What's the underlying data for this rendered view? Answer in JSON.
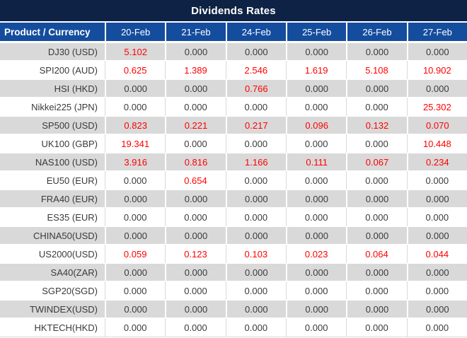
{
  "chart_data": {
    "type": "table",
    "title": "Dividends Rates",
    "columns": [
      "Product / Currency",
      "20-Feb",
      "21-Feb",
      "24-Feb",
      "25-Feb",
      "26-Feb",
      "27-Feb"
    ],
    "rows": [
      {
        "product": "DJ30 (USD)",
        "values": [
          5.102,
          0,
          0,
          0,
          0,
          0
        ]
      },
      {
        "product": "SPI200 (AUD)",
        "values": [
          0.625,
          1.389,
          2.546,
          1.619,
          5.108,
          10.902
        ]
      },
      {
        "product": "HSI (HKD)",
        "values": [
          0,
          0,
          0.766,
          0,
          0,
          0
        ]
      },
      {
        "product": "Nikkei225 (JPN)",
        "values": [
          0,
          0,
          0,
          0,
          0,
          25.302
        ]
      },
      {
        "product": "SP500 (USD)",
        "values": [
          0.823,
          0.221,
          0.217,
          0.096,
          0.132,
          0.07
        ]
      },
      {
        "product": "UK100 (GBP)",
        "values": [
          19.341,
          0,
          0,
          0,
          0,
          10.448
        ]
      },
      {
        "product": "NAS100 (USD)",
        "values": [
          3.916,
          0.816,
          1.166,
          0.111,
          0.067,
          0.234
        ]
      },
      {
        "product": "EU50 (EUR)",
        "values": [
          0,
          0.654,
          0,
          0,
          0,
          0
        ]
      },
      {
        "product": "FRA40 (EUR)",
        "values": [
          0,
          0,
          0,
          0,
          0,
          0
        ]
      },
      {
        "product": "ES35 (EUR)",
        "values": [
          0,
          0,
          0,
          0,
          0,
          0
        ]
      },
      {
        "product": "CHINA50(USD)",
        "values": [
          0,
          0,
          0,
          0,
          0,
          0
        ]
      },
      {
        "product": "US2000(USD)",
        "values": [
          0.059,
          0.123,
          0.103,
          0.023,
          0.064,
          0.044
        ]
      },
      {
        "product": "SA40(ZAR)",
        "values": [
          0,
          0,
          0,
          0,
          0,
          0
        ]
      },
      {
        "product": "SGP20(SGD)",
        "values": [
          0,
          0,
          0,
          0,
          0,
          0
        ]
      },
      {
        "product": "TWINDEX(USD)",
        "values": [
          0,
          0,
          0,
          0,
          0,
          0
        ]
      },
      {
        "product": "HKTECH(HKD)",
        "values": [
          0,
          0,
          0,
          0,
          0,
          0
        ]
      }
    ],
    "value_format": "3 decimal places",
    "layout_hints": {
      "highlight_rule": "nonzero values rendered in red",
      "row_striping": "odd rows gray, even rows white",
      "legend": "none",
      "grid": "white separators on gray rows, light-gray separators on white rows"
    },
    "colors": {
      "title_bg": "#0d2244",
      "title_text": "#ffffff",
      "header_bg": "#154d9e",
      "header_text": "#ffffff",
      "row_alt_bg": "#d9d9d9",
      "row_bg": "#ffffff",
      "value_text": "#3a3a3a",
      "value_highlight": "#ff0000"
    }
  }
}
